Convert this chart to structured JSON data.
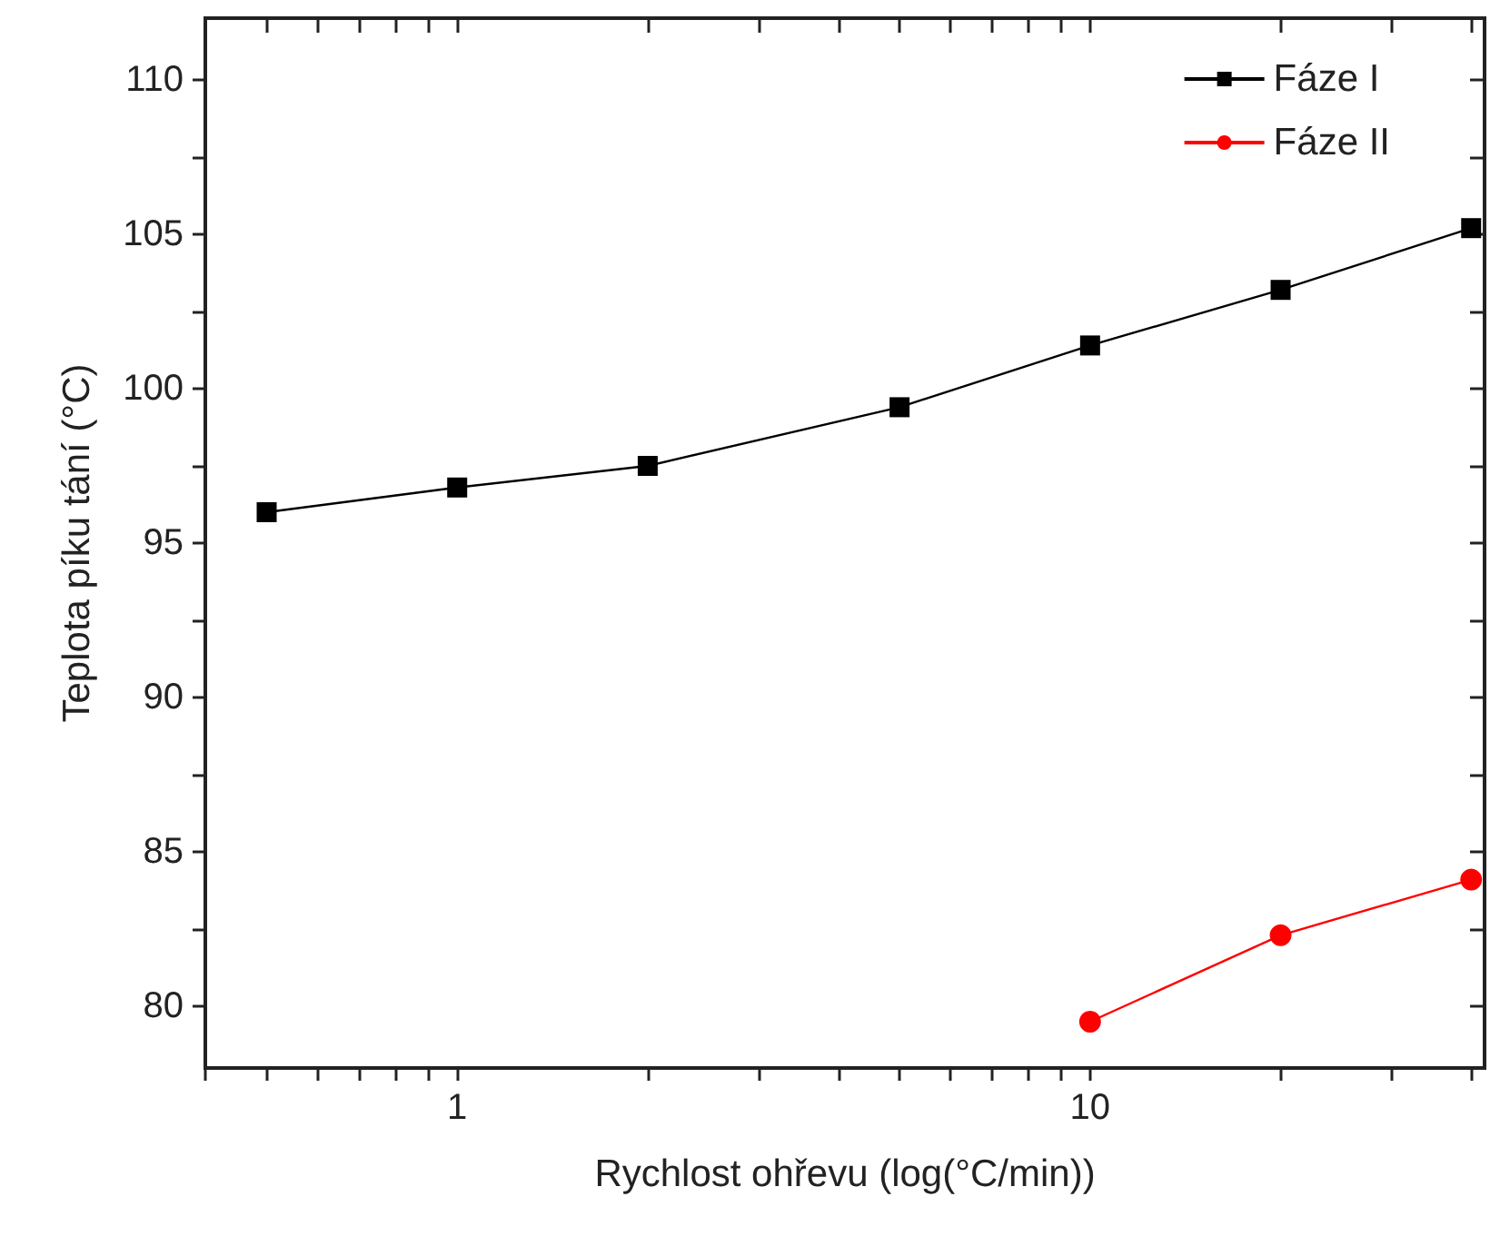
{
  "chart_data": {
    "type": "line",
    "xlabel": "Rychlost ohřevu (log(°C/min))",
    "ylabel": "Teplota píku tání (°C)",
    "log": "x",
    "xlim": [
      0.4,
      42
    ],
    "ylim": [
      78,
      112
    ],
    "xticks": [
      {
        "value": 0.4,
        "label": null
      },
      {
        "value": 0.5,
        "label": null
      },
      {
        "value": 0.6,
        "label": null
      },
      {
        "value": 0.7,
        "label": null
      },
      {
        "value": 0.8,
        "label": null
      },
      {
        "value": 0.9,
        "label": null
      },
      1,
      {
        "value": 2,
        "label": null
      },
      {
        "value": 3,
        "label": null
      },
      {
        "value": 4,
        "label": null
      },
      {
        "value": 5,
        "label": null
      },
      {
        "value": 6,
        "label": null
      },
      {
        "value": 7,
        "label": null
      },
      {
        "value": 8,
        "label": null
      },
      {
        "value": 9,
        "label": null
      },
      10,
      {
        "value": 20,
        "label": null
      },
      {
        "value": 30,
        "label": null
      },
      {
        "value": 40,
        "label": null
      }
    ],
    "yticks": [
      80,
      {
        "value": 82.5,
        "label": null
      },
      85,
      {
        "value": 87.5,
        "label": null
      },
      90,
      {
        "value": 92.5,
        "label": null
      },
      95,
      {
        "value": 97.5,
        "label": null
      },
      100,
      {
        "value": 102.5,
        "label": null
      },
      105,
      {
        "value": 107.5,
        "label": null
      },
      110
    ],
    "grid": false,
    "legend": "top right",
    "line_style": "solid",
    "series": [
      {
        "name": "Fáze I",
        "color": "#000000",
        "marker": "square",
        "x": [
          0.5,
          1,
          2,
          5,
          10,
          20,
          40
        ],
        "values": [
          96.0,
          96.8,
          97.5,
          99.4,
          101.4,
          103.2,
          105.2
        ]
      },
      {
        "name": "Fáze II",
        "color": "#ff0000",
        "marker": "circle",
        "x": [
          10,
          20,
          40
        ],
        "values": [
          79.5,
          82.3,
          84.1
        ]
      }
    ]
  }
}
